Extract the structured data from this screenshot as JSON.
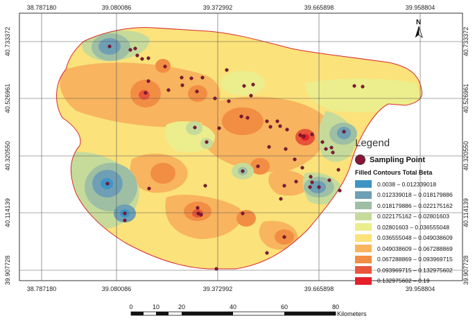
{
  "axes": {
    "top_x": [
      "38.787180",
      "39.080086",
      "39.372992",
      "39.665898",
      "39.958804"
    ],
    "bottom_x": [
      "38.787180",
      "39.080086",
      "39.372992",
      "39.665898",
      "39.958804"
    ],
    "left_y": [
      "40.733372",
      "40.526961",
      "40.320550",
      "40.114139",
      "39.907728"
    ],
    "right_y": [
      "40.733372",
      "40.526961",
      "40.320550",
      "40.114139",
      "39.907728"
    ]
  },
  "north_arrow": {
    "label": "N",
    "icon": "north-arrow-icon"
  },
  "legend": {
    "title": "Legend",
    "point_label": "Sampling Point",
    "point_color": "#8a1538",
    "contours_title": "Filled Contours Total Beta",
    "classes": [
      {
        "label": "0.0038 – 0.012339018",
        "color": "#3f94c4"
      },
      {
        "label": "0.012339018 – 0.018179886",
        "color": "#6e9fb5"
      },
      {
        "label": "0.018179886 – 0.022175162",
        "color": "#9ebfa4"
      },
      {
        "label": "0.022175162 – 0.02801603",
        "color": "#c6db9a"
      },
      {
        "label": "0.02801603 – 0.036555048",
        "color": "#eced8c"
      },
      {
        "label": "0.036555048 – 0.049038609",
        "color": "#fbe27a"
      },
      {
        "label": "0.049038609 – 0.067288869",
        "color": "#f8b45e"
      },
      {
        "label": "0.067288869 – 0.093969715",
        "color": "#f28d44"
      },
      {
        "label": "0.093969715 – 0.132975602",
        "color": "#e8553a"
      },
      {
        "label": "0.132975602 – 0.19",
        "color": "#e4202a"
      }
    ]
  },
  "scale_bar": {
    "labels": [
      "0",
      "10",
      "20",
      "40",
      "60",
      "80"
    ],
    "unit": "Kilometers"
  },
  "colors": {
    "boundary": "#d7262b",
    "grid": "#555555"
  }
}
